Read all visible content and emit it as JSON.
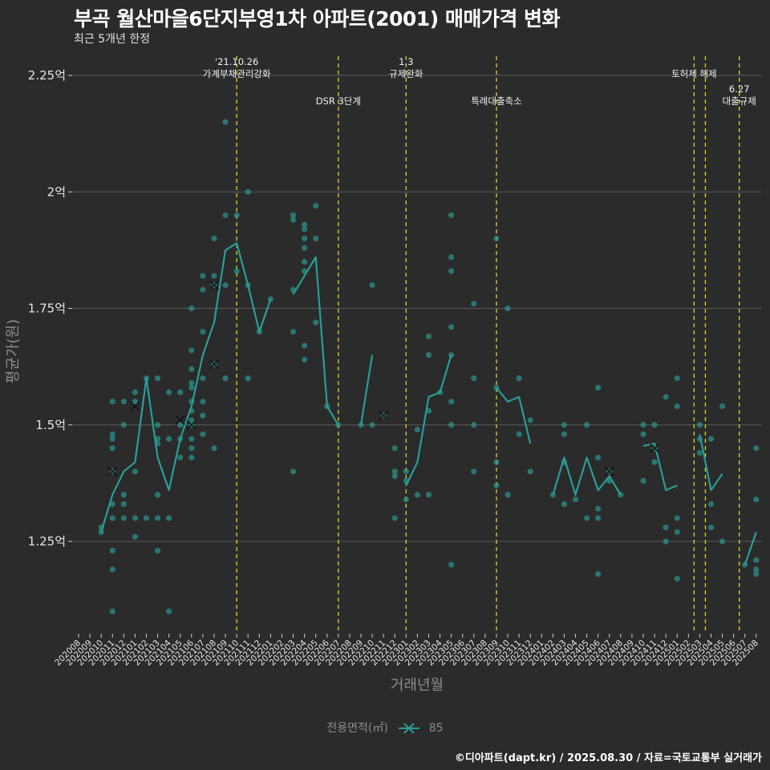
{
  "title": "부곡 월산마을6단지부영1차 아파트(2001) 매매가격 변화",
  "subtitle": "최근 5개년 한정",
  "caption": "©디아파트(dapt.kr) / 2025.08.30 / 자료=국토교통부 실거래가",
  "colors": {
    "background": "#2b2b2b",
    "series": "#2a9d98",
    "vline": "#d4d42a",
    "grid": "#5a5a5a",
    "text": "#ffffff",
    "muted": "#8c8c8c"
  },
  "chart_data": {
    "type": "line",
    "xlabel": "거래년월",
    "ylabel": "평균가(원)",
    "ylim": [
      1.04,
      2.28
    ],
    "yticks": [
      {
        "value": 1.25,
        "label": "1.25억"
      },
      {
        "value": 1.5,
        "label": "1.5억"
      },
      {
        "value": 1.75,
        "label": "1.75억"
      },
      {
        "value": 2.0,
        "label": "2억"
      },
      {
        "value": 2.25,
        "label": "2.25억"
      }
    ],
    "grid": true,
    "legend": {
      "title": "전용면적(㎡)",
      "placement": "bottom",
      "entries": [
        "85"
      ]
    },
    "x_categories": [
      "202008",
      "202009",
      "202010",
      "202011",
      "202012",
      "202101",
      "202102",
      "202103",
      "202104",
      "202105",
      "202106",
      "202107",
      "202108",
      "202109",
      "202110",
      "202111",
      "202112",
      "202201",
      "202202",
      "202203",
      "202204",
      "202205",
      "202206",
      "202207",
      "202208",
      "202209",
      "202210",
      "202211",
      "202212",
      "202301",
      "202302",
      "202303",
      "202304",
      "202305",
      "202306",
      "202307",
      "202308",
      "202309",
      "202310",
      "202311",
      "202312",
      "202401",
      "202402",
      "202403",
      "202404",
      "202405",
      "202406",
      "202407",
      "202408",
      "202409",
      "202410",
      "202411",
      "202412",
      "202501",
      "202502",
      "202503",
      "202504",
      "202505",
      "202506",
      "202507",
      "202508"
    ],
    "series": [
      {
        "name": "85",
        "line_segments": [
          [
            [
              "202010",
              1.27
            ],
            [
              "202011",
              1.35
            ],
            [
              "202012",
              1.4
            ],
            [
              "202101",
              1.42
            ],
            [
              "202102",
              1.6
            ],
            [
              "202103",
              1.43
            ],
            [
              "202104",
              1.36
            ],
            [
              "202105",
              1.47
            ],
            [
              "202106",
              1.54
            ],
            [
              "202107",
              1.65
            ],
            [
              "202108",
              1.72
            ],
            [
              "202109",
              1.875
            ],
            [
              "202110",
              1.89
            ],
            [
              "202111",
              1.8
            ],
            [
              "202112",
              1.7
            ],
            [
              "202201",
              1.77
            ]
          ],
          [
            [
              "202203",
              1.78
            ],
            [
              "202204",
              1.82
            ],
            [
              "202205",
              1.86
            ],
            [
              "202206",
              1.54
            ],
            [
              "202207",
              1.5
            ]
          ],
          [
            [
              "202209",
              1.5
            ],
            [
              "202210",
              1.65
            ]
          ],
          [
            [
              "202301",
              1.37
            ],
            [
              "202302",
              1.42
            ],
            [
              "202303",
              1.56
            ],
            [
              "202304",
              1.57
            ],
            [
              "202305",
              1.65
            ]
          ],
          [
            [
              "202309",
              1.58
            ],
            [
              "202310",
              1.55
            ],
            [
              "202311",
              1.56
            ],
            [
              "202312",
              1.46
            ]
          ],
          [
            [
              "202402",
              1.35
            ],
            [
              "202403",
              1.43
            ],
            [
              "202404",
              1.35
            ],
            [
              "202405",
              1.43
            ],
            [
              "202406",
              1.36
            ],
            [
              "202407",
              1.39
            ],
            [
              "202408",
              1.35
            ]
          ],
          [
            [
              "202410",
              1.455
            ],
            [
              "202411",
              1.46
            ],
            [
              "202412",
              1.36
            ],
            [
              "202501",
              1.37
            ]
          ],
          [
            [
              "202503",
              1.48
            ],
            [
              "202504",
              1.36
            ],
            [
              "202505",
              1.395
            ]
          ],
          [
            [
              "202507",
              1.2
            ],
            [
              "202508",
              1.27
            ]
          ]
        ],
        "points": [
          [
            "202010",
            1.28
          ],
          [
            "202010",
            1.27
          ],
          [
            "202011",
            1.55
          ],
          [
            "202011",
            1.48
          ],
          [
            "202011",
            1.47
          ],
          [
            "202011",
            1.45
          ],
          [
            "202011",
            1.4
          ],
          [
            "202011",
            1.33
          ],
          [
            "202011",
            1.3
          ],
          [
            "202011",
            1.23
          ],
          [
            "202011",
            1.19
          ],
          [
            "202011",
            1.1
          ],
          [
            "202012",
            1.55
          ],
          [
            "202012",
            1.5
          ],
          [
            "202012",
            1.35
          ],
          [
            "202012",
            1.33
          ],
          [
            "202012",
            1.3
          ],
          [
            "202101",
            1.57
          ],
          [
            "202101",
            1.55
          ],
          [
            "202101",
            1.4
          ],
          [
            "202101",
            1.3
          ],
          [
            "202101",
            1.26
          ],
          [
            "202102",
            1.6
          ],
          [
            "202102",
            1.3
          ],
          [
            "202103",
            1.6
          ],
          [
            "202103",
            1.5
          ],
          [
            "202103",
            1.47
          ],
          [
            "202103",
            1.46
          ],
          [
            "202103",
            1.35
          ],
          [
            "202103",
            1.3
          ],
          [
            "202103",
            1.23
          ],
          [
            "202104",
            1.57
          ],
          [
            "202104",
            1.47
          ],
          [
            "202104",
            1.3
          ],
          [
            "202104",
            1.1
          ],
          [
            "202105",
            1.57
          ],
          [
            "202105",
            1.5
          ],
          [
            "202105",
            1.47
          ],
          [
            "202105",
            1.43
          ],
          [
            "202106",
            1.75
          ],
          [
            "202106",
            1.66
          ],
          [
            "202106",
            1.62
          ],
          [
            "202106",
            1.59
          ],
          [
            "202106",
            1.58
          ],
          [
            "202106",
            1.55
          ],
          [
            "202106",
            1.53
          ],
          [
            "202106",
            1.51
          ],
          [
            "202106",
            1.5
          ],
          [
            "202106",
            1.47
          ],
          [
            "202106",
            1.45
          ],
          [
            "202106",
            1.43
          ],
          [
            "202107",
            1.82
          ],
          [
            "202107",
            1.79
          ],
          [
            "202107",
            1.7
          ],
          [
            "202107",
            1.6
          ],
          [
            "202107",
            1.55
          ],
          [
            "202107",
            1.52
          ],
          [
            "202107",
            1.48
          ],
          [
            "202108",
            1.9
          ],
          [
            "202108",
            1.82
          ],
          [
            "202108",
            1.8
          ],
          [
            "202108",
            1.63
          ],
          [
            "202108",
            1.45
          ],
          [
            "202109",
            2.15
          ],
          [
            "202109",
            1.95
          ],
          [
            "202109",
            1.8
          ],
          [
            "202109",
            1.6
          ],
          [
            "202110",
            1.95
          ],
          [
            "202110",
            1.83
          ],
          [
            "202111",
            2.0
          ],
          [
            "202111",
            1.8
          ],
          [
            "202111",
            1.6
          ],
          [
            "202112",
            1.7
          ],
          [
            "202201",
            1.77
          ],
          [
            "202203",
            1.95
          ],
          [
            "202203",
            1.94
          ],
          [
            "202203",
            1.79
          ],
          [
            "202203",
            1.7
          ],
          [
            "202203",
            1.4
          ],
          [
            "202204",
            1.93
          ],
          [
            "202204",
            1.92
          ],
          [
            "202204",
            1.9
          ],
          [
            "202204",
            1.88
          ],
          [
            "202204",
            1.85
          ],
          [
            "202204",
            1.83
          ],
          [
            "202204",
            1.67
          ],
          [
            "202204",
            1.64
          ],
          [
            "202205",
            1.97
          ],
          [
            "202205",
            1.9
          ],
          [
            "202205",
            1.72
          ],
          [
            "202206",
            1.54
          ],
          [
            "202207",
            1.5
          ],
          [
            "202209",
            1.5
          ],
          [
            "202210",
            1.8
          ],
          [
            "202210",
            1.5
          ],
          [
            "202211",
            1.52
          ],
          [
            "202212",
            1.45
          ],
          [
            "202212",
            1.4
          ],
          [
            "202212",
            1.39
          ],
          [
            "202212",
            1.3
          ],
          [
            "202301",
            1.4
          ],
          [
            "202301",
            1.38
          ],
          [
            "202301",
            1.34
          ],
          [
            "202302",
            1.49
          ],
          [
            "202302",
            1.35
          ],
          [
            "202303",
            1.69
          ],
          [
            "202303",
            1.65
          ],
          [
            "202303",
            1.53
          ],
          [
            "202303",
            1.35
          ],
          [
            "202304",
            1.57
          ],
          [
            "202305",
            1.95
          ],
          [
            "202305",
            1.86
          ],
          [
            "202305",
            1.83
          ],
          [
            "202305",
            1.71
          ],
          [
            "202305",
            1.65
          ],
          [
            "202305",
            1.55
          ],
          [
            "202305",
            1.5
          ],
          [
            "202305",
            1.2
          ],
          [
            "202307",
            1.76
          ],
          [
            "202307",
            1.6
          ],
          [
            "202307",
            1.5
          ],
          [
            "202307",
            1.4
          ],
          [
            "202309",
            1.9
          ],
          [
            "202309",
            1.58
          ],
          [
            "202309",
            1.42
          ],
          [
            "202309",
            1.37
          ],
          [
            "202310",
            1.75
          ],
          [
            "202310",
            1.35
          ],
          [
            "202311",
            1.6
          ],
          [
            "202311",
            1.48
          ],
          [
            "202312",
            1.51
          ],
          [
            "202312",
            1.4
          ],
          [
            "202402",
            1.35
          ],
          [
            "202403",
            1.5
          ],
          [
            "202403",
            1.48
          ],
          [
            "202403",
            1.42
          ],
          [
            "202403",
            1.33
          ],
          [
            "202404",
            1.34
          ],
          [
            "202405",
            1.5
          ],
          [
            "202405",
            1.3
          ],
          [
            "202406",
            1.58
          ],
          [
            "202406",
            1.43
          ],
          [
            "202406",
            1.32
          ],
          [
            "202406",
            1.3
          ],
          [
            "202406",
            1.18
          ],
          [
            "202407",
            1.4
          ],
          [
            "202407",
            1.38
          ],
          [
            "202408",
            1.35
          ],
          [
            "202410",
            1.5
          ],
          [
            "202410",
            1.48
          ],
          [
            "202410",
            1.38
          ],
          [
            "202411",
            1.5
          ],
          [
            "202411",
            1.45
          ],
          [
            "202411",
            1.42
          ],
          [
            "202412",
            1.56
          ],
          [
            "202412",
            1.28
          ],
          [
            "202412",
            1.25
          ],
          [
            "202501",
            1.6
          ],
          [
            "202501",
            1.54
          ],
          [
            "202501",
            1.3
          ],
          [
            "202501",
            1.27
          ],
          [
            "202501",
            1.17
          ],
          [
            "202503",
            1.5
          ],
          [
            "202503",
            1.47
          ],
          [
            "202503",
            1.44
          ],
          [
            "202504",
            1.47
          ],
          [
            "202504",
            1.33
          ],
          [
            "202504",
            1.28
          ],
          [
            "202505",
            1.54
          ],
          [
            "202505",
            1.25
          ],
          [
            "202507",
            1.2
          ],
          [
            "202508",
            1.45
          ],
          [
            "202508",
            1.34
          ],
          [
            "202508",
            1.21
          ],
          [
            "202508",
            1.19
          ],
          [
            "202508",
            1.18
          ]
        ],
        "cross_marks": [
          [
            "202011",
            1.4
          ],
          [
            "202101",
            1.54
          ],
          [
            "202105",
            1.51
          ],
          [
            "202106",
            1.5
          ],
          [
            "202108",
            1.8
          ],
          [
            "202108",
            1.63
          ],
          [
            "202211",
            1.52
          ],
          [
            "202407",
            1.4
          ],
          [
            "202411",
            1.45
          ]
        ]
      }
    ],
    "annotations": [
      {
        "x": 14.0,
        "lines": [
          "'21.10.26",
          "가계부채관리강화"
        ],
        "row": 0
      },
      {
        "x": 23.0,
        "lines": [
          "DSR 3단계"
        ],
        "row": 1
      },
      {
        "x": 29.0,
        "lines": [
          "1.3",
          "규제완화"
        ],
        "row": 0
      },
      {
        "x": 37.0,
        "lines": [
          "특례대출축소"
        ],
        "row": 1
      },
      {
        "x": 54.5,
        "lines": [
          "토허제 해제"
        ],
        "row": 0
      },
      {
        "x": 55.5,
        "lines": [],
        "row": 0
      },
      {
        "x": 58.5,
        "lines": [
          "6.27",
          "대출규제"
        ],
        "row": 1
      }
    ]
  }
}
